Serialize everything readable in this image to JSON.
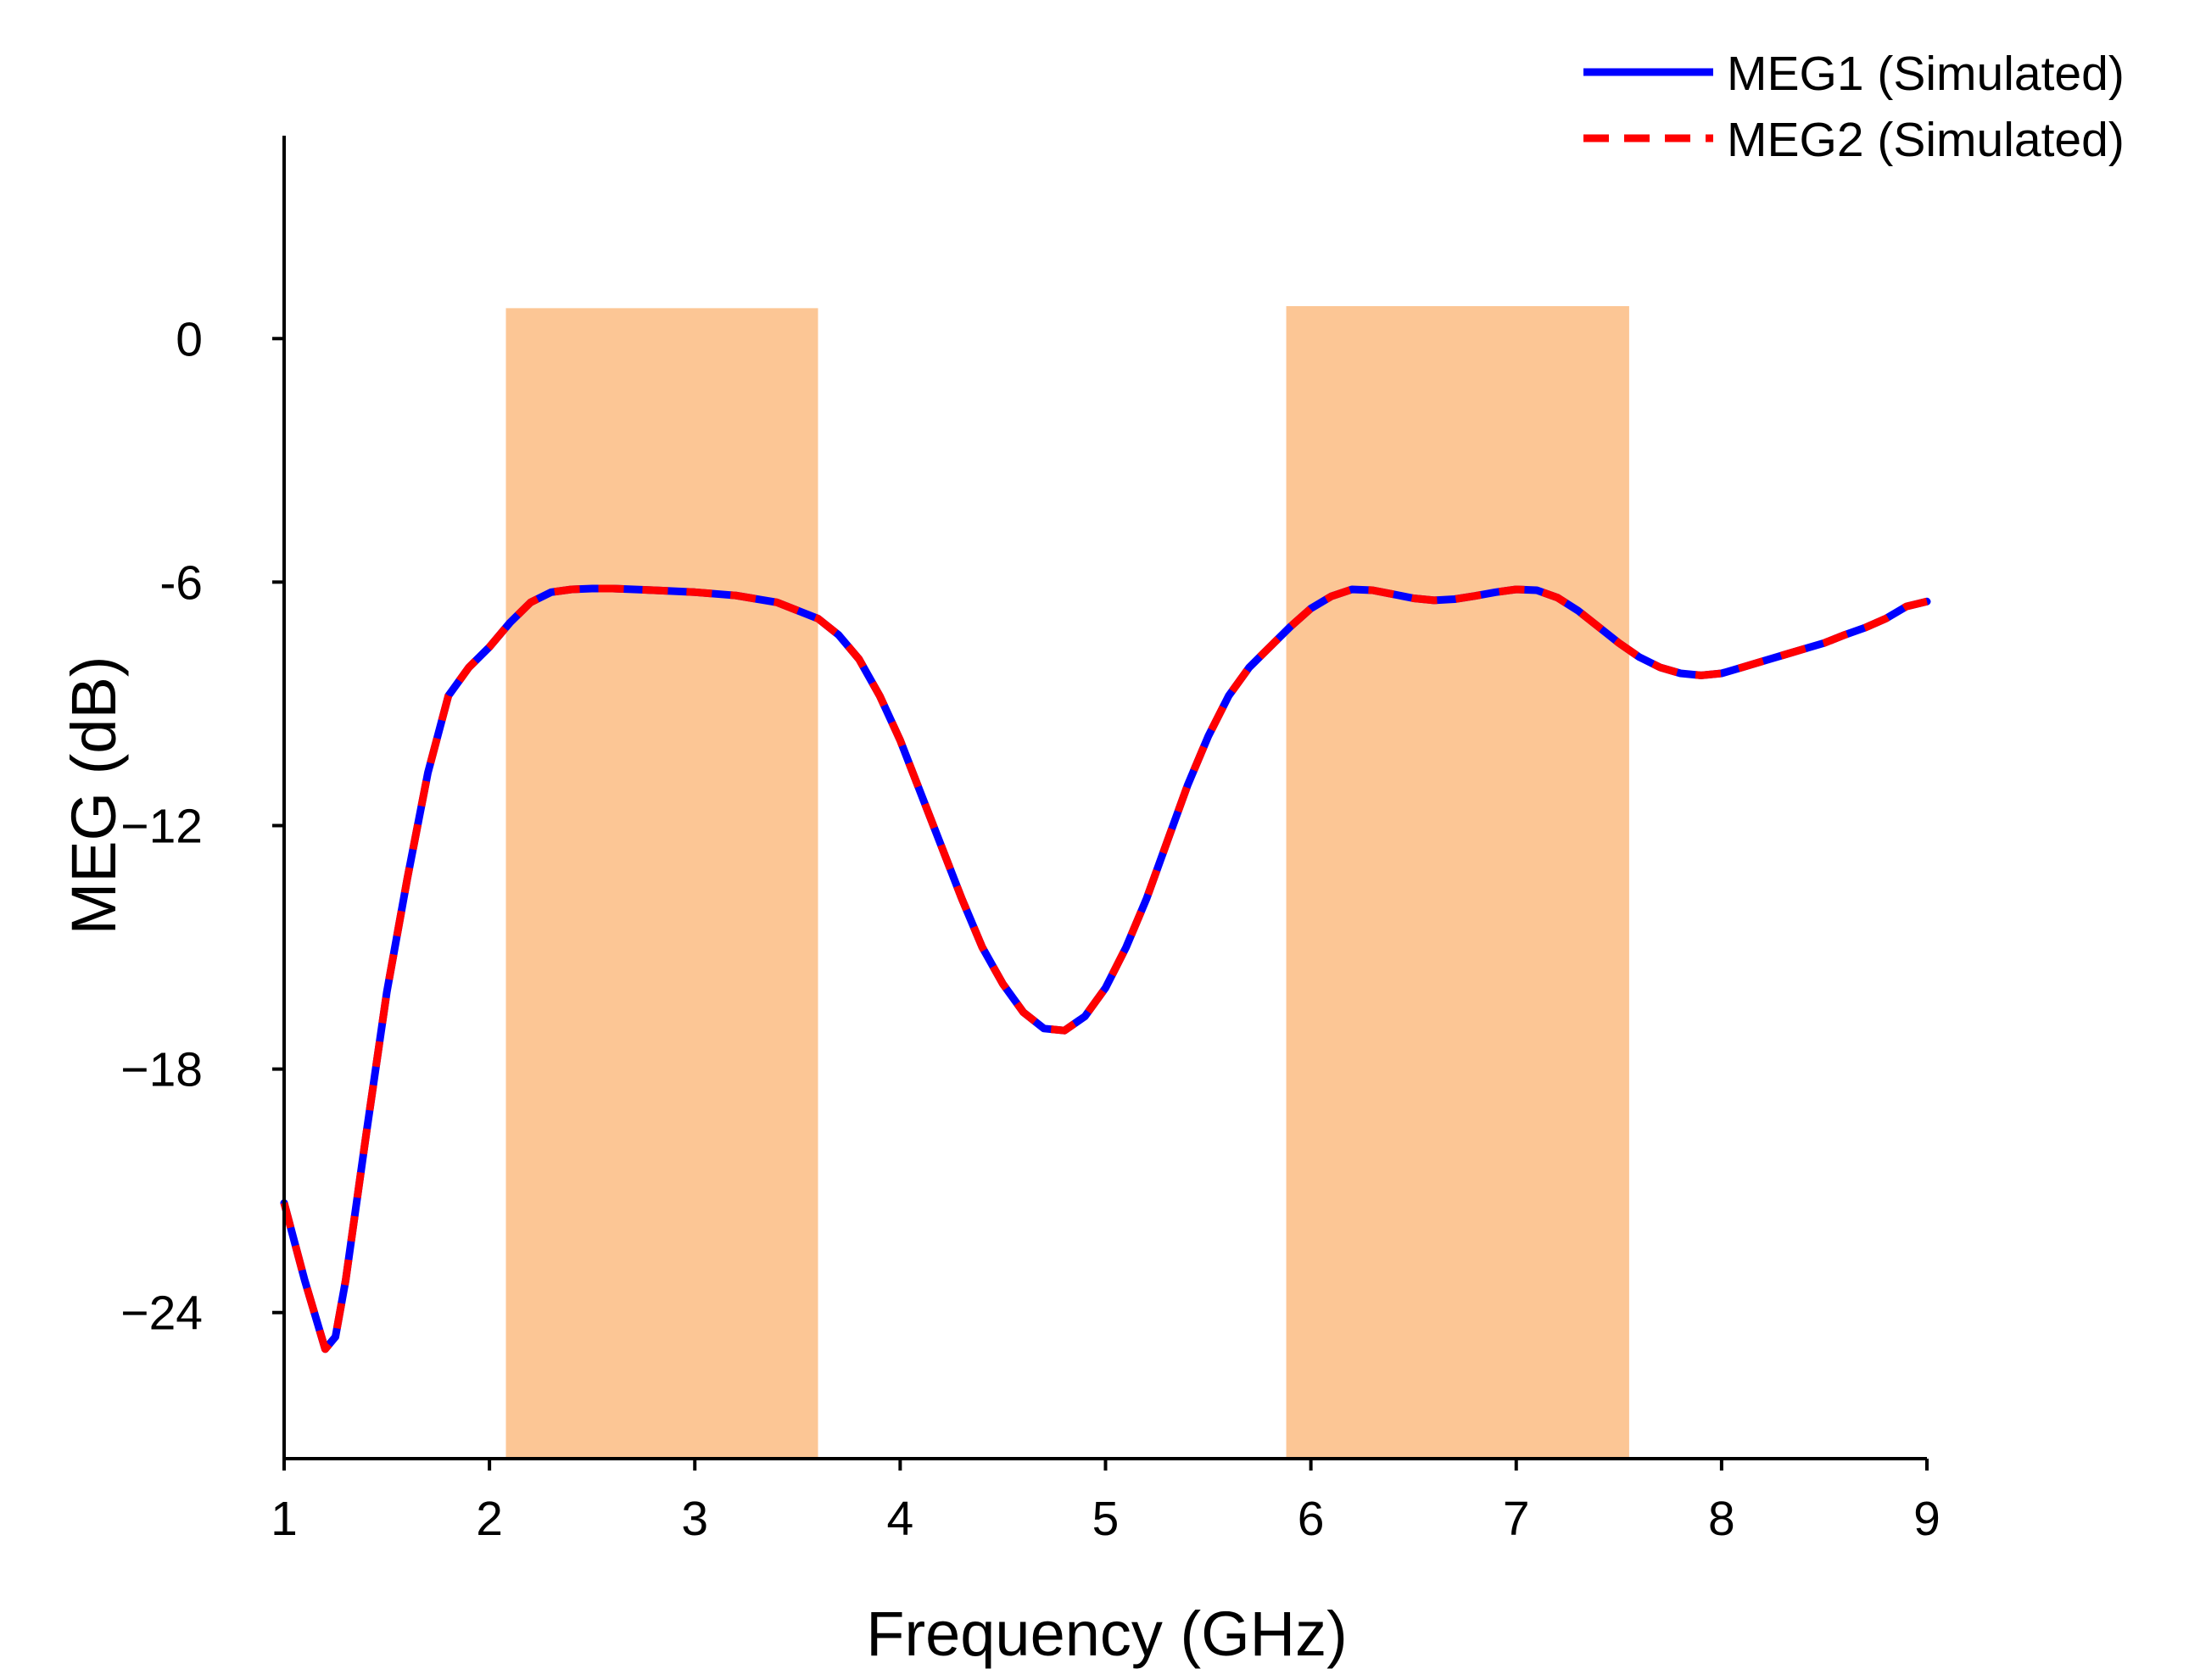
{
  "chart_data": {
    "type": "line",
    "title": "",
    "xlabel": "Frequency (GHz)",
    "ylabel": "MEG (dB)",
    "xlim": [
      1,
      9
    ],
    "ylim": [
      -27.6,
      5
    ],
    "xticks": [
      1,
      2,
      3,
      4,
      5,
      6,
      7,
      8,
      9
    ],
    "xtick_labels": [
      "1",
      "2",
      "3",
      "4",
      "5",
      "6",
      "7",
      "8",
      "9"
    ],
    "yticks": [
      0,
      -6,
      -12,
      -18,
      -24
    ],
    "ytick_labels": [
      "0",
      "-6",
      "−12",
      "−18",
      "−24"
    ],
    "grid": false,
    "legend_position": "top-right",
    "shaded_bands": [
      {
        "x0": 2.08,
        "x1": 3.6,
        "y_top": 0.75,
        "color": "#fcc695"
      },
      {
        "x0": 5.88,
        "x1": 7.55,
        "y_top": 0.8,
        "color": "#fcc695"
      }
    ],
    "x": [
      1.0,
      1.1,
      1.2,
      1.25,
      1.3,
      1.4,
      1.5,
      1.6,
      1.7,
      1.8,
      1.9,
      2.0,
      2.1,
      2.2,
      2.3,
      2.4,
      2.5,
      2.6,
      2.8,
      3.0,
      3.2,
      3.4,
      3.6,
      3.7,
      3.8,
      3.9,
      4.0,
      4.1,
      4.2,
      4.3,
      4.4,
      4.5,
      4.6,
      4.7,
      4.8,
      4.9,
      5.0,
      5.1,
      5.2,
      5.3,
      5.4,
      5.5,
      5.6,
      5.7,
      5.8,
      5.9,
      6.0,
      6.1,
      6.2,
      6.3,
      6.4,
      6.5,
      6.6,
      6.7,
      6.8,
      6.9,
      7.0,
      7.1,
      7.2,
      7.3,
      7.4,
      7.5,
      7.6,
      7.7,
      7.8,
      7.9,
      8.0,
      8.1,
      8.2,
      8.3,
      8.4,
      8.5,
      8.6,
      8.7,
      8.8,
      8.9,
      9.0
    ],
    "series": [
      {
        "name": "MEG1 (Simulated)",
        "color": "#0000ff",
        "style": "solid",
        "values": [
          -21.3,
          -23.2,
          -24.9,
          -24.6,
          -23.2,
          -19.6,
          -16.1,
          -13.3,
          -10.7,
          -8.8,
          -8.1,
          -7.6,
          -7.0,
          -6.5,
          -6.25,
          -6.18,
          -6.16,
          -6.16,
          -6.2,
          -6.25,
          -6.33,
          -6.5,
          -6.9,
          -7.3,
          -7.9,
          -8.8,
          -9.9,
          -11.2,
          -12.5,
          -13.8,
          -15.0,
          -15.9,
          -16.6,
          -17.0,
          -17.05,
          -16.7,
          -16.0,
          -15.0,
          -13.8,
          -12.4,
          -11.0,
          -9.8,
          -8.8,
          -8.1,
          -7.6,
          -7.1,
          -6.65,
          -6.35,
          -6.18,
          -6.2,
          -6.3,
          -6.4,
          -6.45,
          -6.42,
          -6.34,
          -6.25,
          -6.18,
          -6.2,
          -6.38,
          -6.7,
          -7.1,
          -7.5,
          -7.85,
          -8.1,
          -8.25,
          -8.3,
          -8.25,
          -8.1,
          -7.95,
          -7.8,
          -7.65,
          -7.5,
          -7.3,
          -7.12,
          -6.9,
          -6.6,
          -6.48
        ]
      },
      {
        "name": "MEG2 (Simulated)",
        "color": "#ff0000",
        "style": "dashed",
        "values": [
          -21.3,
          -23.2,
          -24.9,
          -24.6,
          -23.2,
          -19.6,
          -16.1,
          -13.3,
          -10.7,
          -8.8,
          -8.1,
          -7.6,
          -7.0,
          -6.5,
          -6.25,
          -6.18,
          -6.16,
          -6.16,
          -6.2,
          -6.25,
          -6.33,
          -6.5,
          -6.9,
          -7.3,
          -7.9,
          -8.8,
          -9.9,
          -11.2,
          -12.5,
          -13.8,
          -15.0,
          -15.9,
          -16.6,
          -17.0,
          -17.05,
          -16.7,
          -16.0,
          -15.0,
          -13.8,
          -12.4,
          -11.0,
          -9.8,
          -8.8,
          -8.1,
          -7.6,
          -7.1,
          -6.65,
          -6.35,
          -6.18,
          -6.2,
          -6.3,
          -6.4,
          -6.45,
          -6.42,
          -6.34,
          -6.25,
          -6.18,
          -6.2,
          -6.38,
          -6.7,
          -7.1,
          -7.5,
          -7.85,
          -8.1,
          -8.25,
          -8.3,
          -8.25,
          -8.1,
          -7.95,
          -7.8,
          -7.65,
          -7.5,
          -7.3,
          -7.12,
          -6.9,
          -6.6,
          -6.48
        ]
      }
    ]
  }
}
